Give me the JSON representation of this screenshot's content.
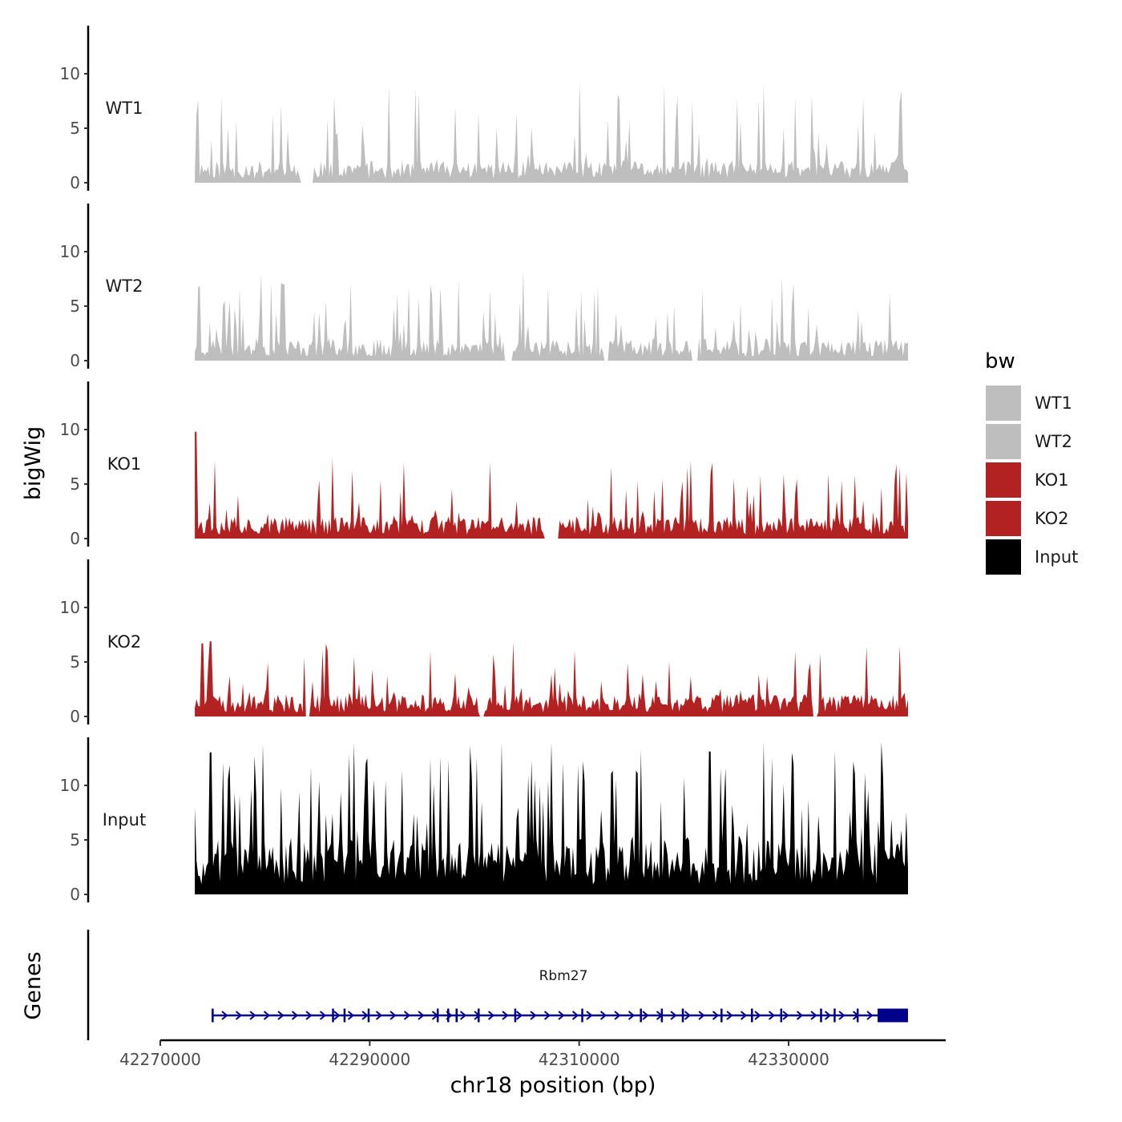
{
  "chart_data": {
    "type": "area",
    "xlabel": "chr18 position (bp)",
    "ylabel": "bigWig",
    "genes_label": "Genes",
    "x_range": [
      42270000,
      42345000
    ],
    "x_data_extent": [
      42273300,
      42341400
    ],
    "x_ticks": [
      42270000,
      42290000,
      42310000,
      42330000
    ],
    "x_tick_labels": [
      "42270000",
      "42290000",
      "42310000",
      "42330000"
    ],
    "y_range": [
      0,
      14
    ],
    "y_ticks": [
      0,
      5,
      10
    ],
    "y_tick_labels": [
      "0",
      "5",
      "10"
    ],
    "tracks": [
      {
        "name": "WT1",
        "color": "#bebebe",
        "baseline": 1.2,
        "spike_prob": 0.16,
        "spike_max": 7.5,
        "seed": 11,
        "peaks": [
          [
            42273600,
            7.6
          ],
          [
            42275800,
            7.8
          ],
          [
            42327600,
            9.0
          ],
          [
            42340800,
            8.5
          ]
        ],
        "gaps": [
          [
            42283400,
            42284600
          ]
        ]
      },
      {
        "name": "WT2",
        "color": "#bebebe",
        "baseline": 1.2,
        "spike_prob": 0.16,
        "spike_max": 6.5,
        "seed": 23,
        "peaks": [
          [
            42273700,
            6.8
          ],
          [
            42280600,
            7.1
          ],
          [
            42281800,
            7.0
          ],
          [
            42288200,
            7.1
          ]
        ],
        "gaps": [
          [
            42302900,
            42303700
          ],
          [
            42312300,
            42312800
          ],
          [
            42320700,
            42321300
          ]
        ]
      },
      {
        "name": "KO1",
        "color": "#b22222",
        "baseline": 1.2,
        "spike_prob": 0.15,
        "spike_max": 6.0,
        "seed": 37,
        "peaks": [
          [
            42273400,
            9.8
          ],
          [
            42275200,
            7.2
          ],
          [
            42336300,
            5.8
          ],
          [
            42340300,
            6.8
          ]
        ],
        "gaps": [
          [
            42306600,
            42308000
          ]
        ]
      },
      {
        "name": "KO2",
        "color": "#b22222",
        "baseline": 1.2,
        "spike_prob": 0.15,
        "spike_max": 5.5,
        "seed": 51,
        "peaks": [
          [
            42274000,
            6.7
          ],
          [
            42274800,
            6.9
          ],
          [
            42300900,
            5.9
          ],
          [
            42340600,
            6.5
          ]
        ],
        "gaps": [
          [
            42283900,
            42284300
          ],
          [
            42300400,
            42300900
          ],
          [
            42332300,
            42332700
          ]
        ]
      },
      {
        "name": "Input",
        "color": "#000000",
        "baseline": 3.0,
        "spike_prob": 0.32,
        "spike_max": 11.0,
        "seed": 77,
        "peaks": [
          [
            42274700,
            13.0
          ],
          [
            42279800,
            13.8
          ],
          [
            42295800,
            12.5
          ],
          [
            42322500,
            13.1
          ],
          [
            42336200,
            12.2
          ]
        ],
        "gaps": []
      }
    ],
    "legend": {
      "title": "bw",
      "entries": [
        {
          "label": "WT1",
          "color": "#bebebe"
        },
        {
          "label": "WT2",
          "color": "#bebebe"
        },
        {
          "label": "KO1",
          "color": "#b22222"
        },
        {
          "label": "KO2",
          "color": "#b22222"
        },
        {
          "label": "Input",
          "color": "#000000"
        }
      ]
    },
    "gene": {
      "name": "Rbm27",
      "color": "#00008b",
      "start": 42274900,
      "end": 42341400,
      "strand": "+",
      "exons": [
        [
          42274900,
          42275100
        ],
        [
          42286400,
          42286500
        ],
        [
          42287500,
          42287600
        ],
        [
          42289800,
          42289900
        ],
        [
          42296400,
          42296500
        ],
        [
          42297400,
          42297500
        ],
        [
          42298200,
          42298400
        ],
        [
          42300300,
          42300500
        ],
        [
          42303800,
          42303900
        ],
        [
          42310200,
          42310300
        ],
        [
          42315800,
          42315900
        ],
        [
          42317800,
          42317900
        ],
        [
          42319800,
          42320000
        ],
        [
          42323500,
          42323600
        ],
        [
          42326400,
          42326600
        ],
        [
          42329200,
          42329300
        ],
        [
          42333000,
          42333200
        ],
        [
          42334300,
          42334400
        ],
        [
          42336500,
          42336600
        ],
        [
          42338500,
          42341400
        ]
      ]
    }
  }
}
